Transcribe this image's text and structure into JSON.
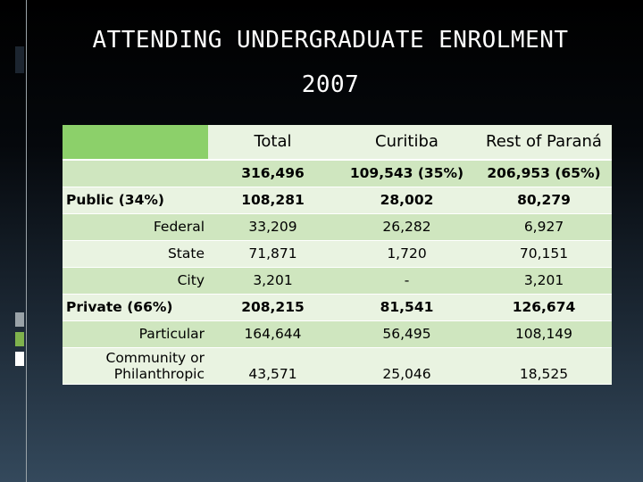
{
  "title": {
    "line1": "ATTENDING UNDERGRADUATE ENROLMENT",
    "line2": "2007"
  },
  "colors": {
    "header_bar": "#8cd06a",
    "row_dark": "#cfe6bf",
    "row_light": "#e9f3e1",
    "deco_dark": "#1c2530",
    "deco_gray": "#9aa3a8",
    "deco_green": "#7fb24d",
    "deco_white": "#ffffff"
  },
  "table": {
    "headers": {
      "total": "Total",
      "curitiba": "Curitiba",
      "rest": "Rest of Paraná"
    },
    "rows": {
      "all": {
        "label": "",
        "total": "316,496",
        "curitiba": "109,543 (35%)",
        "rest": "206,953 (65%)"
      },
      "public": {
        "label": "Public (34%)",
        "total": "108,281",
        "curitiba": "28,002",
        "rest": "80,279"
      },
      "federal": {
        "label": "Federal",
        "total": "33,209",
        "curitiba": "26,282",
        "rest": "6,927"
      },
      "state": {
        "label": "State",
        "total": "71,871",
        "curitiba": "1,720",
        "rest": "70,151"
      },
      "city": {
        "label": "City",
        "total": "3,201",
        "curitiba": "-",
        "rest": "3,201"
      },
      "private": {
        "label": "Private (66%)",
        "total": "208,215",
        "curitiba": "81,541",
        "rest": "126,674"
      },
      "particular": {
        "label": "Particular",
        "total": "164,644",
        "curitiba": "56,495",
        "rest": "108,149"
      },
      "community": {
        "label_line1": "Community or",
        "label_line2": "Philanthropic",
        "total": "43,571",
        "curitiba": "25,046",
        "rest": "18,525"
      }
    }
  }
}
